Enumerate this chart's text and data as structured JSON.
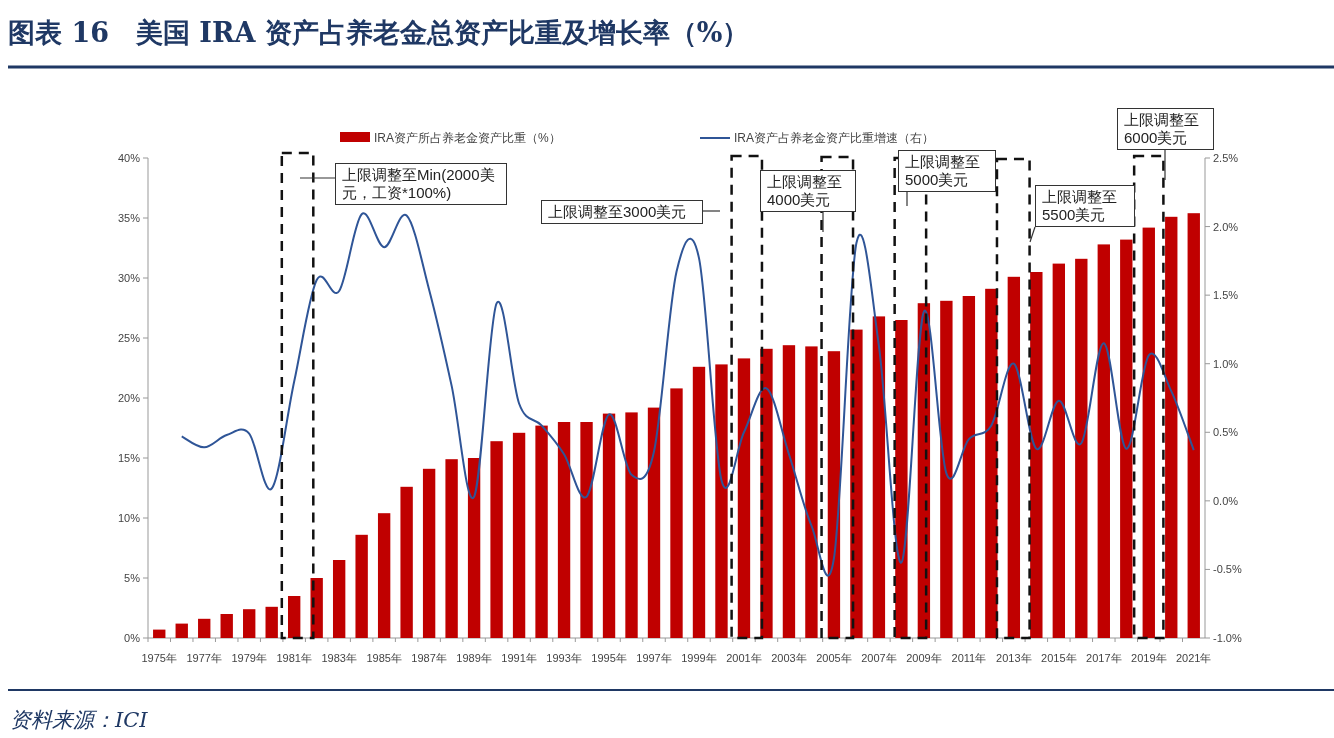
{
  "chart_data": {
    "type": "bar",
    "title": "图表 16　美国 IRA 资产占养老金总资产比重及增长率（%）",
    "categories": [
      "1975年",
      null,
      "1977年",
      null,
      "1979年",
      null,
      "1981年",
      null,
      "1983年",
      null,
      "1985年",
      null,
      "1987年",
      null,
      "1989年",
      null,
      "1991年",
      null,
      "1993年",
      null,
      "1995年",
      null,
      "1997年",
      null,
      "1999年",
      null,
      "2001年",
      null,
      "2003年",
      null,
      "2005年",
      null,
      "2007年",
      null,
      "2009年",
      null,
      "2011年",
      null,
      "2013年",
      null,
      "2015年",
      null,
      "2017年",
      null,
      "2019年",
      null,
      "2021年"
    ],
    "series": [
      {
        "name": "IRA资产所占养老金资产比重（%）",
        "color": "#c00000",
        "values": [
          0.7,
          1.2,
          1.6,
          2.0,
          2.4,
          2.6,
          3.5,
          5.0,
          6.5,
          8.6,
          10.4,
          12.6,
          14.1,
          14.9,
          15.0,
          16.4,
          17.1,
          17.7,
          18.0,
          18.0,
          18.7,
          18.8,
          19.2,
          20.8,
          22.6,
          22.8,
          23.3,
          24.1,
          24.4,
          24.3,
          23.9,
          25.7,
          26.8,
          26.5,
          27.9,
          28.1,
          28.5,
          29.1,
          30.1,
          30.5,
          31.2,
          31.6,
          32.8,
          33.2,
          34.2,
          35.1,
          35.4
        ]
      },
      {
        "name": "IRA资产占养老金资产比重增速（右）",
        "type": "line",
        "axis": "y2",
        "color": "#2f5597",
        "values": [
          null,
          0.47,
          0.39,
          0.48,
          0.49,
          0.09,
          0.87,
          1.61,
          1.53,
          2.09,
          1.85,
          2.08,
          1.54,
          0.84,
          0.03,
          1.44,
          0.71,
          0.55,
          0.34,
          0.03,
          0.63,
          0.19,
          0.36,
          1.67,
          1.77,
          0.15,
          0.5,
          0.82,
          0.34,
          -0.18,
          -0.42,
          1.88,
          1.13,
          -0.45,
          1.38,
          0.2,
          0.45,
          0.55,
          1.0,
          0.38,
          0.73,
          0.42,
          1.15,
          0.38,
          1.06,
          0.8,
          0.37
        ]
      }
    ],
    "ylim": [
      0,
      40
    ],
    "yticks": [
      {
        "value": 0,
        "label": "0%"
      },
      {
        "value": 5,
        "label": "5%"
      },
      {
        "value": 10,
        "label": "10%"
      },
      {
        "value": 15,
        "label": "15%"
      },
      {
        "value": 20,
        "label": "20%"
      },
      {
        "value": 25,
        "label": "25%"
      },
      {
        "value": 30,
        "label": "30%"
      },
      {
        "value": 35,
        "label": "35%"
      },
      {
        "value": 40,
        "label": "40%"
      }
    ],
    "y2lim": [
      -1,
      2.5
    ],
    "y2ticks": [
      {
        "value": -1,
        "label": "-1.0%"
      },
      {
        "value": -0.5,
        "label": "-0.5%"
      },
      {
        "value": 0,
        "label": "0.0%"
      },
      {
        "value": 0.5,
        "label": "0.5%"
      },
      {
        "value": 1,
        "label": "1.0%"
      },
      {
        "value": 1.5,
        "label": "1.5%"
      },
      {
        "value": 2,
        "label": "2.0%"
      },
      {
        "value": 2.5,
        "label": "2.5%"
      }
    ],
    "legend": "top",
    "grid": false,
    "annotations": [
      "上限调整至Min(2000美元，工资*100%)",
      "上限调整至3000美元",
      "上限调整至4000美元",
      "上限调整至5000美元",
      "上限调整至5500美元",
      "上限调整至6000美元",
      "资料来源：ICI"
    ]
  }
}
